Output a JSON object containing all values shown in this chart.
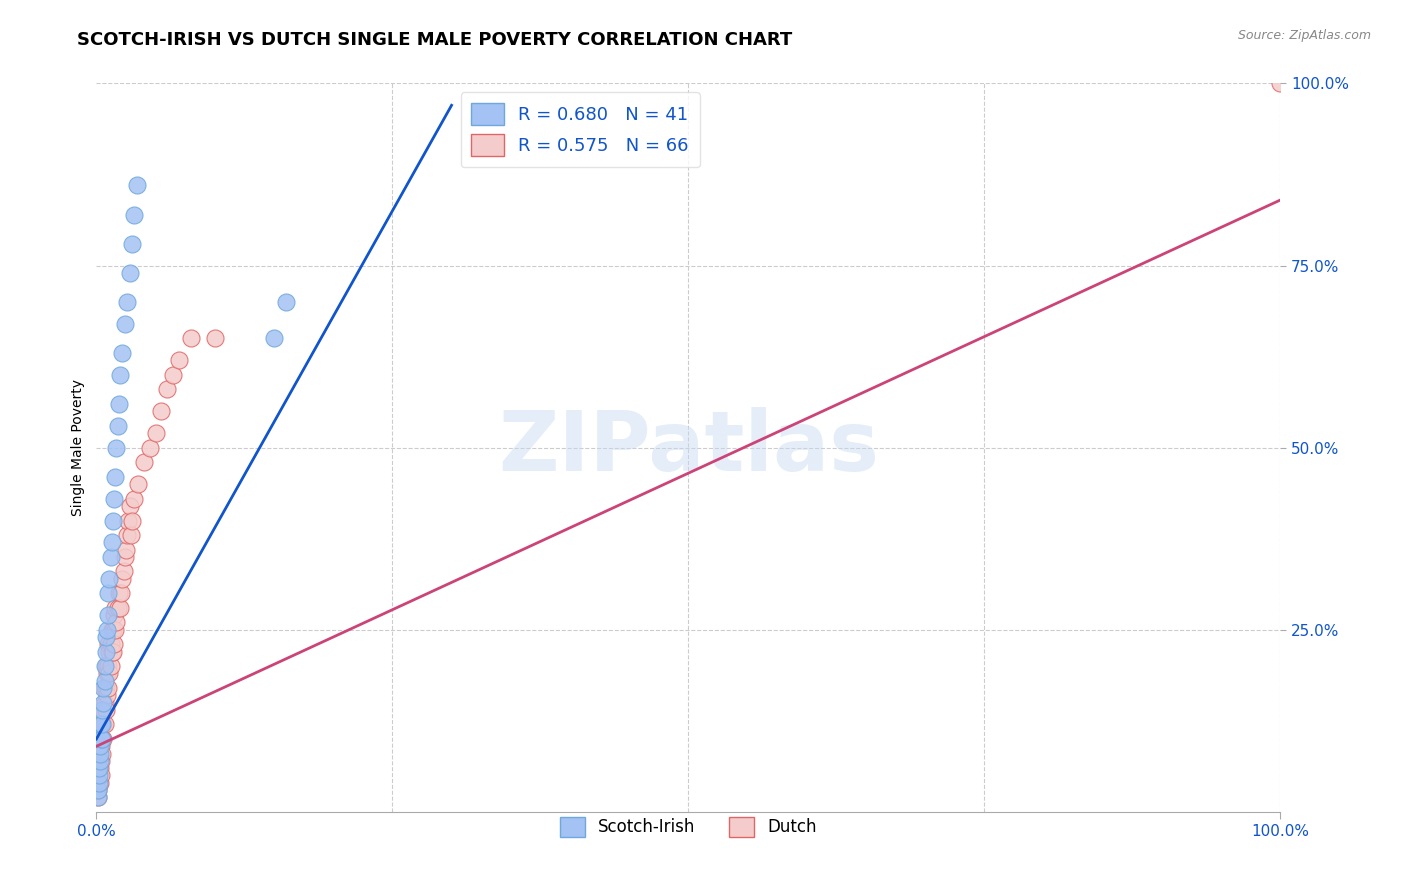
{
  "title": "SCOTCH-IRISH VS DUTCH SINGLE MALE POVERTY CORRELATION CHART",
  "source": "Source: ZipAtlas.com",
  "ylabel": "Single Male Poverty",
  "watermark": "ZIPatlas",
  "legend_blue_r": "R = 0.680",
  "legend_blue_n": "N = 41",
  "legend_pink_r": "R = 0.575",
  "legend_pink_n": "N = 66",
  "legend_label_blue": "Scotch-Irish",
  "legend_label_pink": "Dutch",
  "blue_color": "#a4c2f4",
  "pink_color": "#f4cccc",
  "blue_line_color": "#1155cc",
  "pink_line_color": "#cc4477",
  "blue_edge_color": "#6fa8dc",
  "pink_edge_color": "#e06666",
  "scotch_irish_points": [
    [
      0.001,
      0.02
    ],
    [
      0.001,
      0.03
    ],
    [
      0.002,
      0.04
    ],
    [
      0.002,
      0.05
    ],
    [
      0.002,
      0.06
    ],
    [
      0.003,
      0.07
    ],
    [
      0.003,
      0.08
    ],
    [
      0.003,
      0.09
    ],
    [
      0.004,
      0.1
    ],
    [
      0.004,
      0.12
    ],
    [
      0.005,
      0.1
    ],
    [
      0.005,
      0.12
    ],
    [
      0.005,
      0.14
    ],
    [
      0.006,
      0.15
    ],
    [
      0.006,
      0.17
    ],
    [
      0.007,
      0.18
    ],
    [
      0.007,
      0.2
    ],
    [
      0.008,
      0.22
    ],
    [
      0.008,
      0.24
    ],
    [
      0.009,
      0.25
    ],
    [
      0.01,
      0.27
    ],
    [
      0.01,
      0.3
    ],
    [
      0.011,
      0.32
    ],
    [
      0.012,
      0.35
    ],
    [
      0.013,
      0.37
    ],
    [
      0.014,
      0.4
    ],
    [
      0.015,
      0.43
    ],
    [
      0.016,
      0.46
    ],
    [
      0.017,
      0.5
    ],
    [
      0.018,
      0.53
    ],
    [
      0.019,
      0.56
    ],
    [
      0.02,
      0.6
    ],
    [
      0.022,
      0.63
    ],
    [
      0.024,
      0.67
    ],
    [
      0.026,
      0.7
    ],
    [
      0.028,
      0.74
    ],
    [
      0.03,
      0.78
    ],
    [
      0.032,
      0.82
    ],
    [
      0.034,
      0.86
    ],
    [
      0.15,
      0.65
    ],
    [
      0.16,
      0.7
    ]
  ],
  "dutch_points": [
    [
      0.001,
      0.02
    ],
    [
      0.001,
      0.03
    ],
    [
      0.002,
      0.04
    ],
    [
      0.002,
      0.05
    ],
    [
      0.002,
      0.06
    ],
    [
      0.003,
      0.04
    ],
    [
      0.003,
      0.06
    ],
    [
      0.003,
      0.08
    ],
    [
      0.004,
      0.05
    ],
    [
      0.004,
      0.07
    ],
    [
      0.004,
      0.09
    ],
    [
      0.005,
      0.08
    ],
    [
      0.005,
      0.1
    ],
    [
      0.005,
      0.12
    ],
    [
      0.006,
      0.1
    ],
    [
      0.006,
      0.12
    ],
    [
      0.006,
      0.14
    ],
    [
      0.007,
      0.12
    ],
    [
      0.007,
      0.15
    ],
    [
      0.007,
      0.17
    ],
    [
      0.008,
      0.14
    ],
    [
      0.008,
      0.17
    ],
    [
      0.008,
      0.2
    ],
    [
      0.009,
      0.16
    ],
    [
      0.009,
      0.19
    ],
    [
      0.01,
      0.17
    ],
    [
      0.01,
      0.2
    ],
    [
      0.01,
      0.23
    ],
    [
      0.011,
      0.19
    ],
    [
      0.011,
      0.22
    ],
    [
      0.012,
      0.2
    ],
    [
      0.012,
      0.23
    ],
    [
      0.013,
      0.22
    ],
    [
      0.013,
      0.25
    ],
    [
      0.014,
      0.22
    ],
    [
      0.014,
      0.25
    ],
    [
      0.015,
      0.23
    ],
    [
      0.015,
      0.27
    ],
    [
      0.016,
      0.25
    ],
    [
      0.016,
      0.28
    ],
    [
      0.017,
      0.26
    ],
    [
      0.018,
      0.28
    ],
    [
      0.019,
      0.3
    ],
    [
      0.02,
      0.28
    ],
    [
      0.021,
      0.3
    ],
    [
      0.022,
      0.32
    ],
    [
      0.023,
      0.33
    ],
    [
      0.024,
      0.35
    ],
    [
      0.025,
      0.36
    ],
    [
      0.026,
      0.38
    ],
    [
      0.027,
      0.4
    ],
    [
      0.028,
      0.42
    ],
    [
      0.029,
      0.38
    ],
    [
      0.03,
      0.4
    ],
    [
      0.032,
      0.43
    ],
    [
      0.035,
      0.45
    ],
    [
      0.04,
      0.48
    ],
    [
      0.045,
      0.5
    ],
    [
      0.05,
      0.52
    ],
    [
      0.055,
      0.55
    ],
    [
      0.06,
      0.58
    ],
    [
      0.065,
      0.6
    ],
    [
      0.07,
      0.62
    ],
    [
      0.08,
      0.65
    ],
    [
      0.1,
      0.65
    ],
    [
      1.0,
      1.0
    ]
  ],
  "blue_line": [
    [
      0.0,
      0.1
    ],
    [
      0.3,
      0.97
    ]
  ],
  "pink_line": [
    [
      0.0,
      0.09
    ],
    [
      1.0,
      0.84
    ]
  ],
  "xlim": [
    0.0,
    1.0
  ],
  "ylim": [
    0.0,
    1.0
  ],
  "grid_color": "#cccccc",
  "background_color": "#ffffff",
  "title_fontsize": 13,
  "axis_label_fontsize": 10,
  "tick_fontsize": 11,
  "right_tick_color": "#1155cc"
}
